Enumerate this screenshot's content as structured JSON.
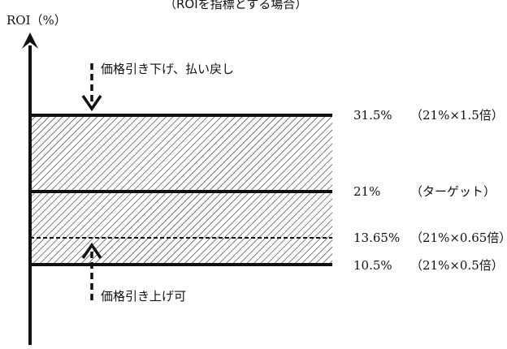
{
  "title": "（ROIを指標とする場合）",
  "y_axis_label": "ROI（%）",
  "annotations": {
    "down": "価格引き下げ、払い戻し",
    "up": "価格引き上げ可"
  },
  "levels": [
    {
      "value": "31.5%",
      "note": "（21%×1.5倍）"
    },
    {
      "value": "21%",
      "note": "（ターゲット）"
    },
    {
      "value": "13.65%",
      "note": "（21%×0.65倍）"
    },
    {
      "value": "10.5%",
      "note": "（21%×0.5倍）"
    }
  ],
  "colors": {
    "line": "#111111",
    "background": "#ffffff"
  }
}
